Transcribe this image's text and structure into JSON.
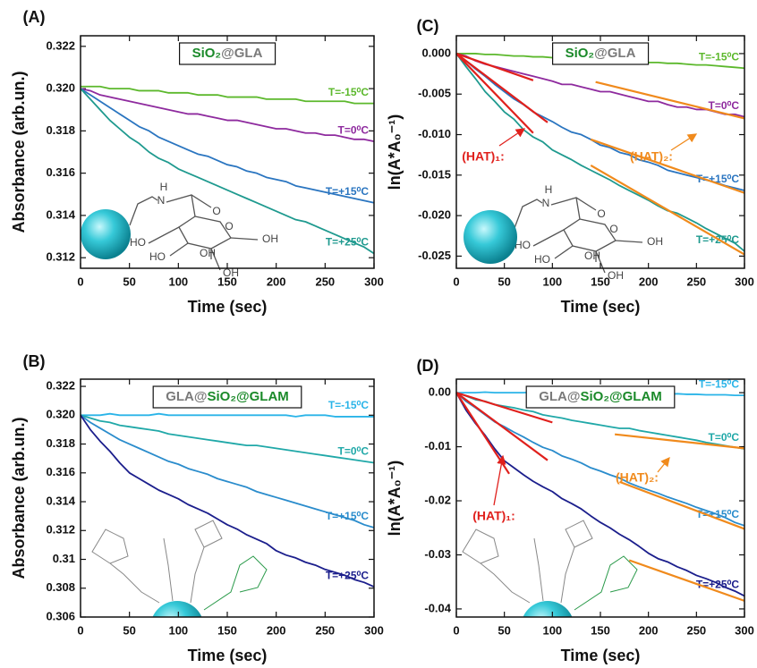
{
  "chart_data": [
    {
      "type": "line",
      "title": "(A)",
      "box_label": [
        {
          "text": "SiO₂",
          "color": "#1b8a2a"
        },
        {
          "text": "@GLA",
          "color": "#7a7a7a"
        }
      ],
      "xlabel": "Time (sec)",
      "ylabel": "Absorbance (arb.un.)",
      "x": [
        0,
        10,
        20,
        30,
        40,
        50,
        60,
        70,
        80,
        90,
        100,
        110,
        120,
        130,
        140,
        150,
        160,
        170,
        180,
        190,
        200,
        210,
        220,
        230,
        240,
        250,
        260,
        270,
        280,
        290,
        300
      ],
      "xlim": [
        0,
        300
      ],
      "xticks": [
        0,
        50,
        100,
        150,
        200,
        250,
        300
      ],
      "ylim": [
        0.3115,
        0.3225
      ],
      "yticks": [
        0.312,
        0.314,
        0.316,
        0.318,
        {
          "value": 0.32,
          "label": "0.320"
        },
        0.322
      ],
      "series": [
        {
          "name": "T=-15⁰C",
          "color": "#5cb82c",
          "values": [
            0.3201,
            0.3201,
            0.3201,
            0.32,
            0.32,
            0.32,
            0.3199,
            0.3199,
            0.3199,
            0.3198,
            0.3198,
            0.3198,
            0.3197,
            0.3197,
            0.3197,
            0.3196,
            0.3196,
            0.3196,
            0.3196,
            0.3195,
            0.3195,
            0.3195,
            0.3195,
            0.3194,
            0.3194,
            0.3194,
            0.3194,
            0.3194,
            0.3193,
            0.3193,
            0.3193
          ]
        },
        {
          "name": "T=0⁰C",
          "color": "#8e2a9e",
          "values": [
            0.32,
            0.3199,
            0.3197,
            0.3196,
            0.3195,
            0.3194,
            0.3193,
            0.3192,
            0.3191,
            0.319,
            0.3189,
            0.3188,
            0.3188,
            0.3187,
            0.3186,
            0.3185,
            0.3185,
            0.3184,
            0.3183,
            0.3182,
            0.3181,
            0.3181,
            0.318,
            0.3179,
            0.3179,
            0.3178,
            0.3178,
            0.3177,
            0.3176,
            0.3176,
            0.3175
          ]
        },
        {
          "name": "T=+15⁰C",
          "color": "#2a75c0",
          "values": [
            0.32,
            0.3197,
            0.3194,
            0.3191,
            0.3188,
            0.3185,
            0.3182,
            0.318,
            0.3177,
            0.3175,
            0.3173,
            0.3171,
            0.3169,
            0.3168,
            0.3166,
            0.3164,
            0.3163,
            0.3161,
            0.316,
            0.3158,
            0.3157,
            0.3156,
            0.3154,
            0.3153,
            0.3152,
            0.3151,
            0.315,
            0.3149,
            0.3148,
            0.3147,
            0.3146
          ]
        },
        {
          "name": "T=+25⁰C",
          "color": "#1f9a8f",
          "values": [
            0.32,
            0.3195,
            0.319,
            0.3185,
            0.3181,
            0.3177,
            0.3174,
            0.317,
            0.3167,
            0.3165,
            0.3162,
            0.316,
            0.3158,
            0.3156,
            0.3154,
            0.3152,
            0.315,
            0.3148,
            0.3146,
            0.3144,
            0.3142,
            0.314,
            0.3138,
            0.3137,
            0.3135,
            0.3133,
            0.3131,
            0.3129,
            0.3127,
            0.3125,
            0.3122
          ]
        }
      ],
      "structure_labels": [
        "H",
        "N",
        "O",
        "O",
        "OH",
        "HO",
        "HO",
        "OH",
        "OH"
      ]
    },
    {
      "type": "line",
      "title": "(B)",
      "box_label": [
        {
          "text": "GLA@",
          "color": "#7a7a7a"
        },
        {
          "text": "SiO₂",
          "color": "#1b8a2a"
        },
        {
          "text": "@GLAM",
          "color": "#1b8a2a"
        }
      ],
      "xlabel": "Time (sec)",
      "ylabel": "Absorbance (arb.un.)",
      "x": [
        0,
        10,
        20,
        30,
        40,
        50,
        60,
        70,
        80,
        90,
        100,
        110,
        120,
        130,
        140,
        150,
        160,
        170,
        180,
        190,
        200,
        210,
        220,
        230,
        240,
        250,
        260,
        270,
        280,
        290,
        300
      ],
      "xlim": [
        0,
        300
      ],
      "xticks": [
        0,
        50,
        100,
        150,
        200,
        250,
        300
      ],
      "ylim": [
        0.306,
        0.3225
      ],
      "yticks": [
        0.306,
        0.308,
        0.31,
        0.312,
        0.314,
        0.316,
        0.318,
        {
          "value": 0.32,
          "label": "0.320"
        },
        0.322
      ],
      "series": [
        {
          "name": "T=-15⁰C",
          "color": "#2ab4e8",
          "values": [
            0.32,
            0.32,
            0.32,
            0.3201,
            0.32,
            0.32,
            0.32,
            0.32,
            0.3201,
            0.32,
            0.32,
            0.32,
            0.32,
            0.32,
            0.32,
            0.32,
            0.32,
            0.32,
            0.32,
            0.32,
            0.32,
            0.32,
            0.3199,
            0.32,
            0.32,
            0.32,
            0.3199,
            0.3199,
            0.3199,
            0.3199,
            0.3199
          ]
        },
        {
          "name": "T=0⁰C",
          "color": "#20a8a8",
          "values": [
            0.32,
            0.3198,
            0.3196,
            0.3195,
            0.3193,
            0.3192,
            0.3191,
            0.319,
            0.3189,
            0.3187,
            0.3186,
            0.3185,
            0.3184,
            0.3183,
            0.3182,
            0.3181,
            0.318,
            0.3179,
            0.3179,
            0.3178,
            0.3177,
            0.3176,
            0.3175,
            0.3174,
            0.3173,
            0.3172,
            0.3171,
            0.317,
            0.3169,
            0.3168,
            0.3167
          ]
        },
        {
          "name": "T=+15⁰C",
          "color": "#2a8ccc",
          "values": [
            0.32,
            0.3195,
            0.3191,
            0.3187,
            0.3183,
            0.318,
            0.3177,
            0.3174,
            0.3171,
            0.3168,
            0.3166,
            0.3163,
            0.3161,
            0.3159,
            0.3156,
            0.3154,
            0.3152,
            0.315,
            0.3147,
            0.3145,
            0.3143,
            0.3141,
            0.3139,
            0.3137,
            0.3135,
            0.3133,
            0.3131,
            0.3129,
            0.3127,
            0.3124,
            0.3122
          ]
        },
        {
          "name": "T=+25⁰C",
          "color": "#1b1e8c",
          "values": [
            0.32,
            0.319,
            0.3182,
            0.3175,
            0.3167,
            0.316,
            0.3156,
            0.3152,
            0.3148,
            0.3145,
            0.3142,
            0.3138,
            0.3135,
            0.3132,
            0.3128,
            0.3124,
            0.3121,
            0.3117,
            0.3114,
            0.3111,
            0.3106,
            0.3103,
            0.3101,
            0.3098,
            0.3096,
            0.3093,
            0.3091,
            0.3089,
            0.3086,
            0.3084,
            0.3081
          ]
        }
      ]
    },
    {
      "type": "line",
      "title": "(C)",
      "box_label": [
        {
          "text": "SiO₂",
          "color": "#1b8a2a"
        },
        {
          "text": "@GLA",
          "color": "#7a7a7a"
        }
      ],
      "xlabel": "Time (sec)",
      "ylabel": "ln(A*A₀⁻¹)",
      "x": [
        0,
        10,
        20,
        30,
        40,
        50,
        60,
        70,
        80,
        90,
        100,
        110,
        120,
        130,
        140,
        150,
        160,
        170,
        180,
        190,
        200,
        210,
        220,
        230,
        240,
        250,
        260,
        270,
        280,
        290,
        300
      ],
      "xlim": [
        0,
        300
      ],
      "xticks": [
        0,
        50,
        100,
        150,
        200,
        250,
        300
      ],
      "ylim": [
        -0.0265,
        0.0022
      ],
      "yticks": [
        {
          "value": 0,
          "label": "0.000"
        },
        -0.005,
        {
          "value": -0.01,
          "label": "-0.010"
        },
        -0.015,
        {
          "value": -0.02,
          "label": "-0.020"
        },
        -0.025
      ],
      "series": [
        {
          "name": "T=-15⁰C",
          "color": "#5cb82c",
          "values": [
            0,
            0,
            0,
            -0.0001,
            -0.0001,
            -0.0002,
            -0.0003,
            -0.0003,
            -0.0004,
            -0.0004,
            -0.0005,
            -0.0005,
            -0.0006,
            -0.0006,
            -0.0007,
            -0.0008,
            -0.0008,
            -0.0009,
            -0.0009,
            -0.001,
            -0.0011,
            -0.0011,
            -0.0012,
            -0.0012,
            -0.0013,
            -0.0014,
            -0.0014,
            -0.0015,
            -0.0016,
            -0.0017,
            -0.0018
          ]
        },
        {
          "name": "T=0⁰C",
          "color": "#8e2a9e",
          "values": [
            0,
            -0.0003,
            -0.0009,
            -0.0013,
            -0.0016,
            -0.0019,
            -0.0022,
            -0.0025,
            -0.0028,
            -0.0031,
            -0.0034,
            -0.0038,
            -0.0038,
            -0.0041,
            -0.0044,
            -0.0047,
            -0.0047,
            -0.005,
            -0.0053,
            -0.0056,
            -0.0059,
            -0.0059,
            -0.0063,
            -0.0066,
            -0.0066,
            -0.0069,
            -0.0069,
            -0.0072,
            -0.0075,
            -0.0075,
            -0.0078
          ]
        },
        {
          "name": "T=+15⁰C",
          "color": "#2a75c0",
          "values": [
            0,
            -0.0009,
            -0.0019,
            -0.0028,
            -0.0038,
            -0.0047,
            -0.0056,
            -0.0063,
            -0.0072,
            -0.0078,
            -0.0084,
            -0.0091,
            -0.0097,
            -0.01,
            -0.0106,
            -0.0113,
            -0.0116,
            -0.0122,
            -0.0125,
            -0.0131,
            -0.0134,
            -0.0138,
            -0.0144,
            -0.0147,
            -0.015,
            -0.0153,
            -0.0156,
            -0.0159,
            -0.0163,
            -0.0166,
            -0.0169
          ]
        },
        {
          "name": "T=+25⁰C",
          "color": "#1f9a8f",
          "values": [
            0,
            -0.0016,
            -0.0031,
            -0.0047,
            -0.0059,
            -0.0072,
            -0.0081,
            -0.0094,
            -0.0103,
            -0.0109,
            -0.0119,
            -0.0125,
            -0.0131,
            -0.0138,
            -0.0144,
            -0.015,
            -0.0156,
            -0.0163,
            -0.0169,
            -0.0175,
            -0.0181,
            -0.0188,
            -0.0194,
            -0.0197,
            -0.0203,
            -0.0209,
            -0.0216,
            -0.0222,
            -0.0228,
            -0.0234,
            -0.0244
          ]
        }
      ],
      "fit_lines": [
        {
          "color": "#e0201c",
          "x": [
            0,
            80
          ],
          "values": [
            0,
            -0.0033
          ]
        },
        {
          "color": "#e0201c",
          "x": [
            0,
            95
          ],
          "values": [
            0,
            -0.0085
          ]
        },
        {
          "color": "#e0201c",
          "x": [
            0,
            80
          ],
          "values": [
            0,
            -0.0098
          ]
        },
        {
          "color": "#f08a1c",
          "x": [
            145,
            300
          ],
          "values": [
            -0.0035,
            -0.008
          ]
        },
        {
          "color": "#f08a1c",
          "x": [
            140,
            300
          ],
          "values": [
            -0.0106,
            -0.0172
          ]
        },
        {
          "color": "#f08a1c",
          "x": [
            140,
            300
          ],
          "values": [
            -0.0138,
            -0.0248
          ]
        }
      ],
      "hat_labels": [
        {
          "text": "(HAT)₁:",
          "color": "#e0201c"
        },
        {
          "text": "(HAT)₂:",
          "color": "#f08a1c"
        }
      ],
      "structure_labels": [
        "H",
        "N",
        "O",
        "O",
        "OH",
        "HO",
        "HO",
        "OH",
        "OH"
      ]
    },
    {
      "type": "line",
      "title": "(D)",
      "box_label": [
        {
          "text": "GLA@",
          "color": "#7a7a7a"
        },
        {
          "text": "SiO₂",
          "color": "#1b8a2a"
        },
        {
          "text": "@GLAM",
          "color": "#1b8a2a"
        }
      ],
      "xlabel": "Time (sec)",
      "ylabel": "ln(A*A₀⁻¹)",
      "x": [
        0,
        10,
        20,
        30,
        40,
        50,
        60,
        70,
        80,
        90,
        100,
        110,
        120,
        130,
        140,
        150,
        160,
        170,
        180,
        190,
        200,
        210,
        220,
        230,
        240,
        250,
        260,
        270,
        280,
        290,
        300
      ],
      "xlim": [
        0,
        300
      ],
      "xticks": [
        0,
        50,
        100,
        150,
        200,
        250,
        300
      ],
      "ylim": [
        -0.0415,
        0.0025
      ],
      "yticks": [
        {
          "value": 0,
          "label": "0.00"
        },
        -0.01,
        -0.02,
        -0.03,
        -0.04
      ],
      "series": [
        {
          "name": "T=-15⁰C",
          "color": "#2ab4e8",
          "values": [
            0,
            0,
            0,
            0.0001,
            0,
            0,
            0,
            0,
            0.0001,
            0,
            0,
            0,
            -0.0001,
            0,
            0,
            -0.0001,
            -0.0001,
            -0.0001,
            -0.0002,
            -0.0001,
            -0.0002,
            -0.0002,
            -0.0003,
            -0.0002,
            -0.0003,
            -0.0003,
            -0.0004,
            -0.0004,
            -0.0004,
            -0.0005,
            -0.0005
          ]
        },
        {
          "name": "T=0⁰C",
          "color": "#20a8a8",
          "values": [
            0,
            -0.0006,
            -0.0013,
            -0.0016,
            -0.0022,
            -0.0025,
            -0.0028,
            -0.0032,
            -0.0035,
            -0.0041,
            -0.0044,
            -0.0047,
            -0.0051,
            -0.0054,
            -0.0057,
            -0.006,
            -0.0063,
            -0.0066,
            -0.0066,
            -0.007,
            -0.0073,
            -0.0076,
            -0.0079,
            -0.0082,
            -0.0085,
            -0.0088,
            -0.0092,
            -0.0095,
            -0.0098,
            -0.0101,
            -0.0104
          ]
        },
        {
          "name": "T=+15⁰C",
          "color": "#2a8ccc",
          "values": [
            0,
            -0.0016,
            -0.0028,
            -0.0041,
            -0.0054,
            -0.0063,
            -0.0073,
            -0.0082,
            -0.0092,
            -0.0101,
            -0.0107,
            -0.0117,
            -0.0123,
            -0.013,
            -0.0139,
            -0.0145,
            -0.0152,
            -0.0158,
            -0.0167,
            -0.0174,
            -0.018,
            -0.0186,
            -0.0193,
            -0.0199,
            -0.0205,
            -0.0212,
            -0.0218,
            -0.0224,
            -0.0231,
            -0.024,
            -0.0246
          ]
        },
        {
          "name": "T=+25⁰C",
          "color": "#1b1e8c",
          "values": [
            0,
            -0.0032,
            -0.0057,
            -0.0079,
            -0.0104,
            -0.0126,
            -0.0139,
            -0.0152,
            -0.0164,
            -0.0174,
            -0.0183,
            -0.0196,
            -0.0205,
            -0.0215,
            -0.0228,
            -0.024,
            -0.025,
            -0.0262,
            -0.0272,
            -0.0284,
            -0.0297,
            -0.0307,
            -0.0313,
            -0.0322,
            -0.0329,
            -0.0338,
            -0.0344,
            -0.0351,
            -0.036,
            -0.0367,
            -0.0376
          ]
        }
      ],
      "fit_lines": [
        {
          "color": "#e0201c",
          "x": [
            0,
            100
          ],
          "values": [
            0,
            -0.0055
          ]
        },
        {
          "color": "#e0201c",
          "x": [
            0,
            95
          ],
          "values": [
            0,
            -0.0125
          ]
        },
        {
          "color": "#e0201c",
          "x": [
            0,
            55
          ],
          "values": [
            0,
            -0.015
          ]
        },
        {
          "color": "#f08a1c",
          "x": [
            165,
            300
          ],
          "values": [
            -0.0077,
            -0.0103
          ]
        },
        {
          "color": "#f08a1c",
          "x": [
            170,
            300
          ],
          "values": [
            -0.0165,
            -0.0252
          ]
        },
        {
          "color": "#f08a1c",
          "x": [
            180,
            300
          ],
          "values": [
            -0.031,
            -0.0385
          ]
        }
      ],
      "hat_labels": [
        {
          "text": "(HAT)₁:",
          "color": "#e0201c"
        },
        {
          "text": "(HAT)₂:",
          "color": "#f08a1c"
        }
      ]
    }
  ]
}
